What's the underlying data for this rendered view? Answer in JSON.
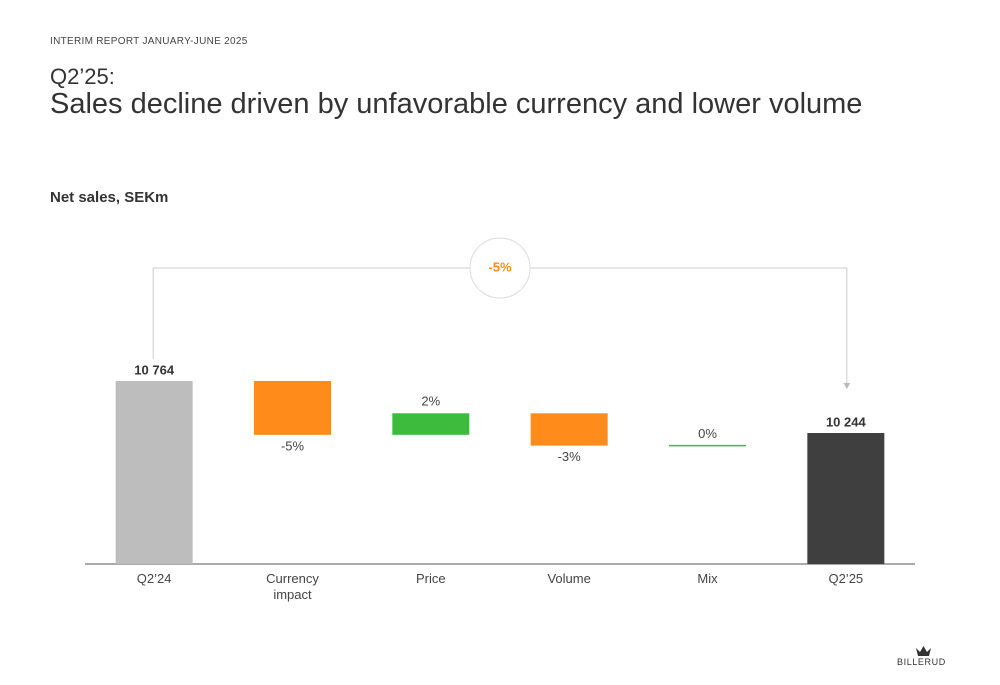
{
  "header": {
    "report": "INTERIM REPORT JANUARY-JUNE 2025",
    "quarter": "Q2’25:",
    "title": "Sales decline driven by unfavorable currency and lower volume"
  },
  "chart_data": {
    "type": "waterfall",
    "subtitle": "Net sales, SEKm",
    "categories": [
      "Q2’24",
      "Currency impact",
      "Price",
      "Volume",
      "Mix",
      "Q2’25"
    ],
    "measures": [
      "absolute",
      "relative",
      "relative",
      "relative",
      "relative",
      "absolute"
    ],
    "values": [
      10764,
      -5,
      2,
      -3,
      0,
      10244
    ],
    "value_labels": [
      "10 764",
      "-5%",
      "2%",
      "-3%",
      "0%",
      "10 244"
    ],
    "colors": [
      "#bdbdbd",
      "#ff8c1a",
      "#3dbb3d",
      "#ff8c1a",
      "#3dbb3d",
      "#3f3f3f"
    ],
    "annotation": "-5%"
  },
  "footer": {
    "logo": "BILLERUD"
  }
}
